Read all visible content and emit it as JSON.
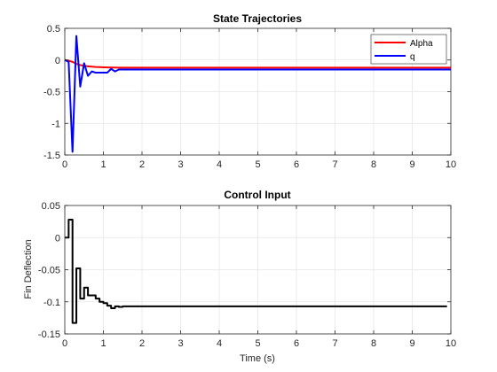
{
  "figure": {
    "background": "#ffffff",
    "axes_background": "#ffffff",
    "grid_color": "#e6e6e6",
    "axis_color": "#262626"
  },
  "chart_data": [
    {
      "type": "line",
      "title": "State Trajectories",
      "xlabel": "",
      "ylabel": "",
      "xlim": [
        0,
        10
      ],
      "ylim": [
        -1.5,
        0.5
      ],
      "xticks": [
        0,
        1,
        2,
        3,
        4,
        5,
        6,
        7,
        8,
        9,
        10
      ],
      "yticks": [
        -1.5,
        -1,
        -0.5,
        0,
        0.5
      ],
      "xtick_labels": [
        "0",
        "1",
        "2",
        "3",
        "4",
        "5",
        "6",
        "7",
        "8",
        "9",
        "10"
      ],
      "ytick_labels": [
        "-1.5",
        "-1",
        "-0.5",
        "0",
        "0.5"
      ],
      "grid": true,
      "box": true,
      "legend": {
        "placement": "top-right",
        "entries": [
          "Alpha",
          "q"
        ]
      },
      "series": [
        {
          "name": "Alpha",
          "color": "#ff0000",
          "x": [
            0,
            0.1,
            0.2,
            0.3,
            0.4,
            0.5,
            0.6,
            0.7,
            0.8,
            0.9,
            1.0,
            1.1,
            1.2,
            1.4,
            1.6,
            2,
            10
          ],
          "y": [
            0,
            -0.01,
            -0.03,
            -0.06,
            -0.08,
            -0.09,
            -0.1,
            -0.105,
            -0.11,
            -0.112,
            -0.115,
            -0.117,
            -0.118,
            -0.12,
            -0.12,
            -0.12,
            -0.12
          ]
        },
        {
          "name": "q",
          "color": "#0000ff",
          "x": [
            0,
            0.1,
            0.2,
            0.3,
            0.4,
            0.5,
            0.6,
            0.7,
            0.8,
            0.9,
            1.0,
            1.1,
            1.2,
            1.3,
            1.4,
            1.5,
            10
          ],
          "y": [
            0,
            -0.03,
            -1.45,
            0.38,
            -0.42,
            -0.05,
            -0.25,
            -0.18,
            -0.2,
            -0.2,
            -0.2,
            -0.2,
            -0.14,
            -0.18,
            -0.15,
            -0.15,
            -0.15
          ]
        }
      ]
    },
    {
      "type": "line",
      "title": "Control Input",
      "xlabel": "Time (s)",
      "ylabel": "Fin Deflection",
      "xlim": [
        0,
        10
      ],
      "ylim": [
        -0.15,
        0.05
      ],
      "xticks": [
        0,
        1,
        2,
        3,
        4,
        5,
        6,
        7,
        8,
        9,
        10
      ],
      "yticks": [
        -0.15,
        -0.1,
        -0.05,
        0,
        0.05
      ],
      "xtick_labels": [
        "0",
        "1",
        "2",
        "3",
        "4",
        "5",
        "6",
        "7",
        "8",
        "9",
        "10"
      ],
      "ytick_labels": [
        "-0.15",
        "-0.1",
        "-0.05",
        "0",
        "0.05"
      ],
      "grid": true,
      "box": true,
      "step": true,
      "series": [
        {
          "color": "#000000",
          "x": [
            0,
            0.1,
            0.2,
            0.3,
            0.4,
            0.5,
            0.6,
            0.7,
            0.8,
            0.9,
            1.0,
            1.1,
            1.2,
            1.3,
            1.4,
            1.5,
            9.9
          ],
          "y": [
            0,
            0.028,
            -0.133,
            -0.048,
            -0.095,
            -0.078,
            -0.09,
            -0.09,
            -0.095,
            -0.1,
            -0.102,
            -0.106,
            -0.11,
            -0.107,
            -0.108,
            -0.107,
            -0.107
          ]
        }
      ]
    }
  ]
}
